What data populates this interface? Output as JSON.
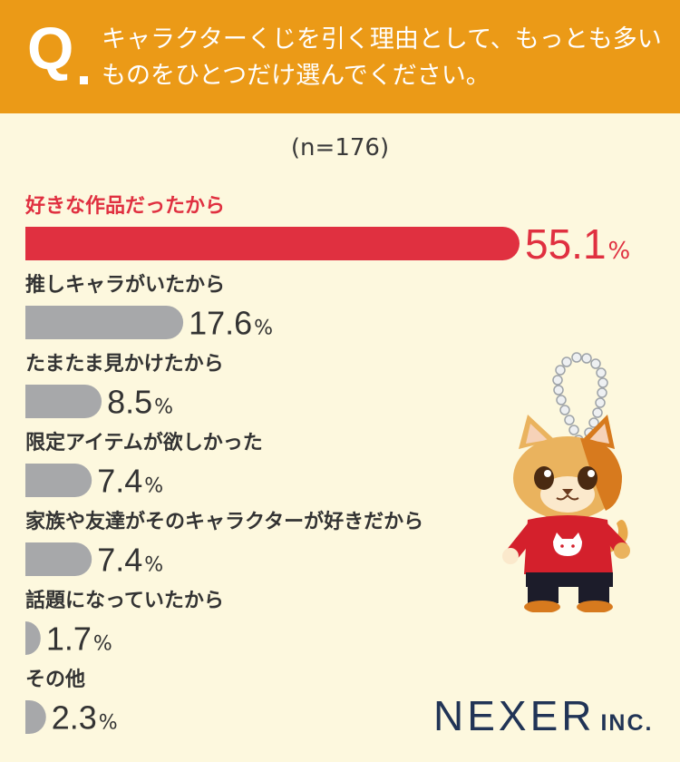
{
  "header": {
    "q_mark": "Q",
    "question": "キャラクターくじを引く理由として、もっとも多いものをひとつだけ選んでください。"
  },
  "sample": "(n=176)",
  "chart_data": {
    "type": "bar",
    "orientation": "horizontal",
    "categories": [
      "好きな作品だったから",
      "推しキャラがいたから",
      "たまたま見かけたから",
      "限定アイテムが欲しかった",
      "家族や友達がそのキャラクターが好きだから",
      "話題になっていたから",
      "その他"
    ],
    "values": [
      55.1,
      17.6,
      8.5,
      7.4,
      7.4,
      1.7,
      2.3
    ],
    "value_labels": [
      "55.1",
      "17.6",
      "8.5",
      "7.4",
      "7.4",
      "1.7",
      "2.3"
    ],
    "unit": "%",
    "highlight_color": "#e03040",
    "bar_color": "#a7a8aa"
  },
  "logo": {
    "main": "NEXER",
    "suffix": "INC."
  },
  "icons": {
    "mascot": "calico-cat-keychain-icon"
  }
}
